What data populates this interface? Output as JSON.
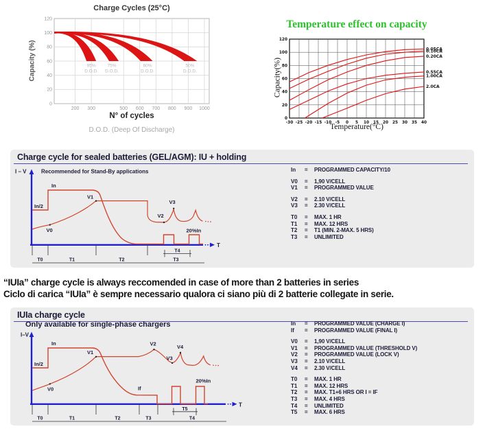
{
  "colors": {
    "chart_red": "#dd1414",
    "waveform_red": "#d0452f",
    "axis_blue": "#2020cc",
    "navy_text": "#1c1c38",
    "panel_bg": "#ececec",
    "header_underline": "#4a4ab0",
    "green_title": "#2dc12d"
  },
  "chart_data": [
    {
      "type": "area",
      "title": "Charge Cycles (25°C)",
      "xlabel": "N° of cycles",
      "ylabel": "Capacity (%)",
      "footnote": "D.O.D. (Deep Of Discharge)",
      "x_ticks": [
        200,
        300,
        500,
        600,
        700,
        800,
        900,
        1000
      ],
      "y_ticks": [
        0,
        20,
        40,
        60,
        80,
        100,
        120
      ],
      "xlim": [
        70,
        1030
      ],
      "ylim": [
        0,
        120
      ],
      "grid": true,
      "bands_note": "red fan bands: capacity falls from 100% to 60% after N cycles depending on depth of discharge",
      "bands": [
        {
          "dod": "95%",
          "dod_word": "D.O.D.",
          "start_capacity": 100,
          "end_capacity": 60,
          "cycles_lo": 270,
          "cycles_hi": 330,
          "label_x": 300
        },
        {
          "dod": "75%",
          "dod_word": "D.O.D.",
          "start_capacity": 100,
          "end_capacity": 60,
          "cycles_lo": 410,
          "cycles_hi": 470,
          "label_x": 427
        },
        {
          "dod": "60%",
          "dod_word": "D.O.D.",
          "start_capacity": 100,
          "end_capacity": 60,
          "cycles_lo": 605,
          "cycles_hi": 680,
          "label_x": 648
        },
        {
          "dod": "50%",
          "dod_word": "D.O.D.",
          "start_capacity": 100,
          "end_capacity": 60,
          "cycles_lo": 875,
          "cycles_hi": 955,
          "label_x": 911
        }
      ]
    },
    {
      "type": "line",
      "title": "Temperature effect on capacity",
      "xlabel": "Temperature(°C)",
      "ylabel": "Capacity(%)",
      "x_ticks": [
        -30,
        -25,
        -20,
        -15,
        -10,
        -5,
        0,
        5,
        10,
        15,
        20,
        25,
        30,
        35,
        40
      ],
      "y_ticks": [
        0,
        20,
        40,
        60,
        80,
        100,
        120
      ],
      "xlim": [
        -30,
        40
      ],
      "ylim": [
        0,
        120
      ],
      "grid": true,
      "legend_position": "right",
      "series": [
        {
          "name": "0.05CA",
          "points": [
            [
              -30,
              55
            ],
            [
              -20,
              69
            ],
            [
              -10,
              80
            ],
            [
              0,
              89
            ],
            [
              10,
              96
            ],
            [
              20,
              101
            ],
            [
              30,
              104
            ],
            [
              40,
              105
            ]
          ]
        },
        {
          "name": "0.10CA",
          "points": [
            [
              -30,
              45
            ],
            [
              -20,
              59
            ],
            [
              -10,
              71
            ],
            [
              0,
              82
            ],
            [
              10,
              91
            ],
            [
              20,
              97
            ],
            [
              30,
              100
            ],
            [
              40,
              102
            ]
          ]
        },
        {
          "name": "0.20CA",
          "points": [
            [
              -30,
              27
            ],
            [
              -20,
              43
            ],
            [
              -10,
              58
            ],
            [
              0,
              70
            ],
            [
              10,
              80
            ],
            [
              20,
              87
            ],
            [
              30,
              92
            ],
            [
              40,
              94
            ]
          ]
        },
        {
          "name": "0.55CA",
          "points": [
            [
              -30,
              13
            ],
            [
              -20,
              27
            ],
            [
              -10,
              41
            ],
            [
              0,
              52
            ],
            [
              10,
              60
            ],
            [
              20,
              65
            ],
            [
              30,
              68
            ],
            [
              40,
              70
            ]
          ]
        },
        {
          "name": "1.00CA",
          "points": [
            [
              -22,
              0
            ],
            [
              -10,
              22
            ],
            [
              0,
              38
            ],
            [
              10,
              50
            ],
            [
              20,
              58
            ],
            [
              30,
              62
            ],
            [
              40,
              64
            ]
          ]
        },
        {
          "name": "2.0CA",
          "points": [
            [
              -13,
              0
            ],
            [
              0,
              15
            ],
            [
              10,
              27
            ],
            [
              20,
              37
            ],
            [
              30,
              44
            ],
            [
              40,
              48
            ]
          ]
        }
      ]
    }
  ],
  "panels": {
    "holding": {
      "header": "Charge cycle for sealed batteries (GEL/AGM): IU + holding",
      "subtitle": "Recommended for Stand-By applications",
      "axis_label": "I – V",
      "t_label": "T",
      "wave_labels": {
        "in": "In",
        "in_half": "In/2",
        "v0": "V0",
        "v1": "V1",
        "v2": "V2",
        "v3": "V3",
        "pulse": "20%In"
      },
      "time_labels": [
        "T0",
        "T1",
        "T2",
        "T3"
      ],
      "bracket_label": "T4",
      "legend": [
        [
          [
            "In",
            "PROGRAMMED CAPACITY/10"
          ]
        ],
        [
          [
            "V0",
            "1,90 V/CELL"
          ],
          [
            "V1",
            "PROGRAMMED VALUE"
          ]
        ],
        [
          [
            "V2",
            "2.10 V/CELL"
          ],
          [
            "V3",
            "2.30 V/CELL"
          ]
        ],
        [
          [
            "T0",
            "MAX. 1 HR"
          ],
          [
            "T1",
            "MAX. 12 HRS"
          ],
          [
            "T2",
            "T1 (MIN. 2-MAX. 5 HRS)"
          ],
          [
            "T3",
            "UNLIMITED"
          ]
        ]
      ]
    },
    "iuia": {
      "header": "IUIa charge cycle",
      "subtitle": "Only available for single-phase chargers",
      "axis_label": "I–V",
      "t_label": "T",
      "wave_labels": {
        "in": "In",
        "in_half": "In/2",
        "if": "If",
        "v0": "V0",
        "v1": "V1",
        "v2": "V2",
        "v3": "V3",
        "v4": "V4",
        "pulse": "20%In"
      },
      "time_labels": [
        "T0",
        "T1",
        "T2",
        "T3",
        "T4"
      ],
      "bracket_label": "T5",
      "legend": [
        [
          [
            "In",
            "PROGRAMMED VALUE (CHARGE I)"
          ],
          [
            "If",
            "PROGRAMMED VALUE (FINAL I)"
          ]
        ],
        [
          [
            "V0",
            "1,90 V/CELL"
          ],
          [
            "V1",
            "PROGRAMMED VALUE (THRESHOLD V)"
          ],
          [
            "V2",
            "PROGRAMMED VALUE (LOCK V)"
          ],
          [
            "V3",
            "2.10 V/CELL"
          ],
          [
            "V4",
            "2.30 V/CELL"
          ]
        ],
        [
          [
            "T0",
            "MAX. 1 HR"
          ],
          [
            "T1",
            "MAX. 12 HRS"
          ],
          [
            "T2",
            "MAX. T1+6 HRS OR I = IF"
          ],
          [
            "T3",
            "MAX. 4 HRS"
          ],
          [
            "T4",
            "UNLIMITED"
          ],
          [
            "T5",
            "MAX. 6 HRS"
          ]
        ]
      ]
    }
  },
  "notes": {
    "en": "“IUIa” charge cycle is always reccomended in case of more than 2 batteries in series",
    "it": "Ciclo di carica “IUIa” è sempre necessario qualora ci siano più di 2 batterie collegate in serie."
  }
}
